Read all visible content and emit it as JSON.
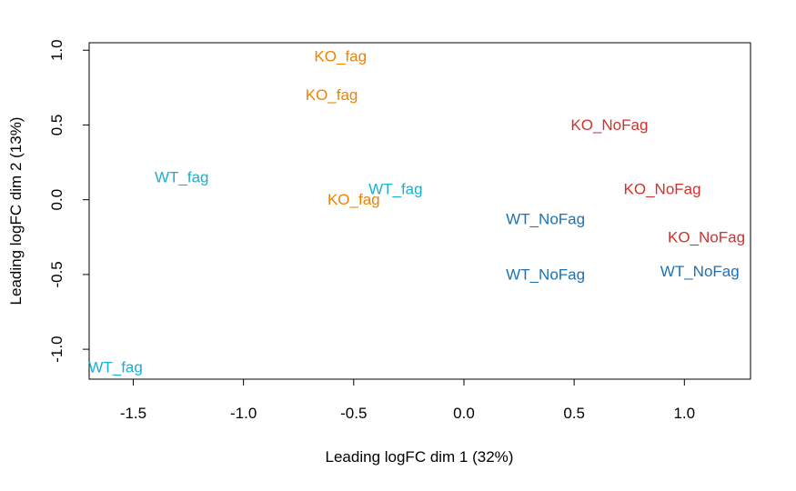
{
  "chart_data": {
    "type": "scatter",
    "xlabel": "Leading logFC dim 1 (32%)",
    "ylabel": "Leading logFC dim 2 (13%)",
    "xlim": [
      -1.7,
      1.3
    ],
    "ylim": [
      -1.2,
      1.05
    ],
    "xticks": [
      -1.5,
      -1.0,
      -0.5,
      0.0,
      0.5,
      1.0
    ],
    "xtick_labels": [
      "-1.5",
      "-1.0",
      "-0.5",
      "0.0",
      "0.5",
      "1.0"
    ],
    "yticks": [
      -1.0,
      -0.5,
      0.0,
      0.5,
      1.0
    ],
    "ytick_labels": [
      "-1.0",
      "-0.5",
      "0.0",
      "0.5",
      "1.0"
    ],
    "grid": false,
    "points": [
      {
        "label": "KO_fag",
        "x": -0.56,
        "y": 0.96,
        "color": "#F08000"
      },
      {
        "label": "KO_fag",
        "x": -0.6,
        "y": 0.7,
        "color": "#F08000"
      },
      {
        "label": "KO_fag",
        "x": -0.5,
        "y": 0.0,
        "color": "#F08000"
      },
      {
        "label": "WT_fag",
        "x": -1.28,
        "y": 0.15,
        "color": "#1AAFD0"
      },
      {
        "label": "WT_fag",
        "x": -0.31,
        "y": 0.07,
        "color": "#1AAFD0"
      },
      {
        "label": "WT_fag",
        "x": -1.58,
        "y": -1.12,
        "color": "#1AAFD0"
      },
      {
        "label": "KO_NoFag",
        "x": 0.66,
        "y": 0.5,
        "color": "#D0312D"
      },
      {
        "label": "KO_NoFag",
        "x": 0.9,
        "y": 0.07,
        "color": "#D0312D"
      },
      {
        "label": "KO_NoFag",
        "x": 1.1,
        "y": -0.25,
        "color": "#D0312D"
      },
      {
        "label": "WT_NoFag",
        "x": 0.37,
        "y": -0.13,
        "color": "#1A72B8"
      },
      {
        "label": "WT_NoFag",
        "x": 0.37,
        "y": -0.5,
        "color": "#1A72B8"
      },
      {
        "label": "WT_NoFag",
        "x": 1.07,
        "y": -0.48,
        "color": "#1A72B8"
      }
    ]
  }
}
